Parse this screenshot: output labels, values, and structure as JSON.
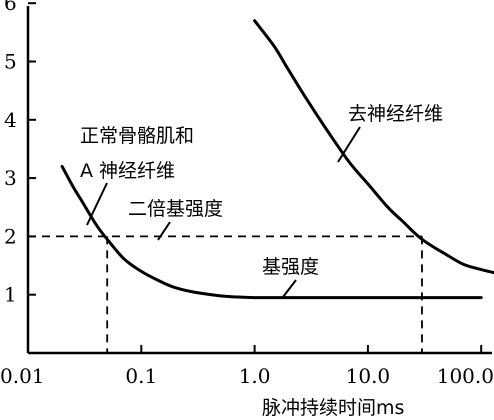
{
  "chart_data": {
    "type": "line",
    "x_scale": "log",
    "xlim": [
      0.01,
      150
    ],
    "ylim": [
      0,
      6.4
    ],
    "xlabel": "脉冲持续时间ms",
    "ylabel": "",
    "grid": false,
    "x_ticks": [
      {
        "value": 0.01,
        "label": "0.01"
      },
      {
        "value": 0.1,
        "label": "0.1"
      },
      {
        "value": 1.0,
        "label": "1.0"
      },
      {
        "value": 10.0,
        "label": "10.0"
      },
      {
        "value": 100.0,
        "label": "100.0"
      }
    ],
    "y_ticks": [
      {
        "value": 1,
        "label": "1"
      },
      {
        "value": 2,
        "label": "2"
      },
      {
        "value": 3,
        "label": "3"
      },
      {
        "value": 4,
        "label": "4"
      },
      {
        "value": 5,
        "label": "5"
      },
      {
        "value": 6,
        "label": "6"
      }
    ],
    "series": [
      {
        "name": "正常骨骼肌和A神经纤维",
        "x": [
          0.02,
          0.025,
          0.03,
          0.04,
          0.05,
          0.07,
          0.1,
          0.15,
          0.2,
          0.3,
          0.5,
          0.7,
          1.0,
          2.0,
          5.0,
          10.0,
          30.0,
          100.0
        ],
        "y": [
          3.2,
          2.85,
          2.6,
          2.2,
          1.95,
          1.62,
          1.4,
          1.22,
          1.12,
          1.04,
          0.98,
          0.96,
          0.95,
          0.95,
          0.95,
          0.95,
          0.95,
          0.95
        ]
      },
      {
        "name": "去神经纤维",
        "x": [
          1.0,
          1.5,
          2.0,
          3.0,
          5.0,
          7.0,
          10.0,
          15.0,
          20.0,
          30.0,
          50.0,
          70.0,
          100.0,
          150.0
        ],
        "y": [
          5.7,
          5.25,
          4.85,
          4.3,
          3.65,
          3.25,
          2.9,
          2.5,
          2.27,
          1.95,
          1.68,
          1.52,
          1.43,
          1.35
        ]
      }
    ],
    "reference_lines": {
      "twice_rheobase_y": 2,
      "chronaxie_normal_x": 0.05,
      "chronaxie_denervated_x": 30.0
    },
    "annotations": [
      {
        "text": "正常骨骼肌和"
      },
      {
        "text": "A 神经纤维"
      },
      {
        "text": "二倍基强度"
      },
      {
        "text": "基强度"
      },
      {
        "text": "去神经纤维"
      }
    ]
  }
}
